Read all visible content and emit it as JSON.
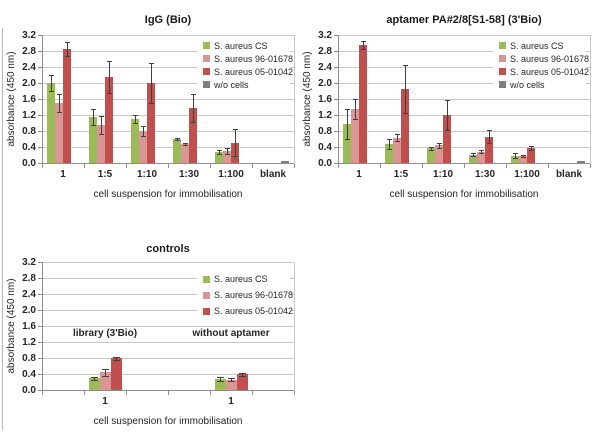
{
  "figure": {
    "background": "#ffffff",
    "series_colors": {
      "s_aureus_cs": "#9bbb59",
      "s_aureus_96_01678": "#d99694",
      "s_aureus_05_01042": "#c0504d",
      "wo_cells": "#7f7f7f"
    },
    "gridline_color": "#c9c9c9",
    "axis_color": "#8f8f8f",
    "error_bar_color": "#404040"
  },
  "chart_data": [
    {
      "type": "bar",
      "name": "igg-bio",
      "title": "IgG (Bio)",
      "xlabel": "cell suspension for immobilisation",
      "ylabel": "absorbance (450 nm)",
      "ylim": [
        0,
        3.2
      ],
      "ytick_step": 0.4,
      "ytick_labels": [
        "0.0",
        "0.4",
        "0.8",
        "1.2",
        "1.6",
        "2.0",
        "2.4",
        "2.8",
        "3.2"
      ],
      "grid": true,
      "legend_position": "top-right-inside",
      "categories": [
        "1",
        "1:5",
        "1:10",
        "1:30",
        "1:100",
        "blank"
      ],
      "series": [
        {
          "name": "S. aureus CS",
          "color": "#9bbb59",
          "values": [
            2.01,
            1.15,
            1.1,
            0.6,
            0.28,
            null
          ],
          "errors": [
            0.2,
            0.2,
            0.09,
            0.03,
            0.05,
            0
          ]
        },
        {
          "name": "S. aureus 96-01678",
          "color": "#d99694",
          "values": [
            1.5,
            0.95,
            0.8,
            0.48,
            0.3,
            null
          ],
          "errors": [
            0.22,
            0.22,
            0.12,
            0.02,
            0.08,
            0
          ]
        },
        {
          "name": "S. aureus 05-01042",
          "color": "#c0504d",
          "values": [
            2.85,
            2.15,
            2.0,
            1.37,
            0.51,
            null
          ],
          "errors": [
            0.17,
            0.4,
            0.5,
            0.35,
            0.33,
            0
          ]
        },
        {
          "name": "w/o cells",
          "color": "#7f7f7f",
          "values": [
            null,
            null,
            null,
            null,
            null,
            0.05
          ],
          "errors": [
            0,
            0,
            0,
            0,
            0,
            0
          ]
        }
      ],
      "annotations": []
    },
    {
      "type": "bar",
      "name": "aptamer",
      "title": "aptamer PA#2/8[S1-58] (3'Bio)",
      "xlabel": "cell suspension for immobilisation",
      "ylabel": "absorbance (450 nm)",
      "ylim": [
        0,
        3.2
      ],
      "ytick_step": 0.4,
      "ytick_labels": [
        "0.0",
        "0.4",
        "0.8",
        "1.2",
        "1.6",
        "2.0",
        "2.4",
        "2.8",
        "3.2"
      ],
      "grid": true,
      "legend_position": "top-right-inside",
      "categories": [
        "1",
        "1:5",
        "1:10",
        "1:30",
        "1:100",
        "blank"
      ],
      "series": [
        {
          "name": "S. aureus CS",
          "color": "#9bbb59",
          "values": [
            0.98,
            0.47,
            0.37,
            0.21,
            0.18,
            null
          ],
          "errors": [
            0.38,
            0.12,
            0.04,
            0.03,
            0.06,
            0
          ]
        },
        {
          "name": "S. aureus 96-01678",
          "color": "#d99694",
          "values": [
            1.35,
            0.63,
            0.44,
            0.28,
            0.17,
            null
          ],
          "errors": [
            0.26,
            0.09,
            0.06,
            0.04,
            0.03,
            0
          ]
        },
        {
          "name": "S. aureus 05-01042",
          "color": "#c0504d",
          "values": [
            2.95,
            1.85,
            1.2,
            0.66,
            0.37,
            null
          ],
          "errors": [
            0.1,
            0.6,
            0.38,
            0.17,
            0.05,
            0
          ]
        },
        {
          "name": "w/o cells",
          "color": "#7f7f7f",
          "values": [
            null,
            null,
            null,
            null,
            null,
            0.05
          ],
          "errors": [
            0,
            0,
            0,
            0,
            0,
            0
          ]
        }
      ],
      "annotations": []
    },
    {
      "type": "bar",
      "name": "controls",
      "title": "controls",
      "xlabel": "cell suspension for immobilisation",
      "ylabel": "absorbance (450 nm)",
      "ylim": [
        0,
        3.2
      ],
      "ytick_step": 0.4,
      "ytick_labels": [
        "0.0",
        "0.4",
        "0.8",
        "1.2",
        "1.6",
        "2.0",
        "2.4",
        "2.8",
        "3.2"
      ],
      "grid": true,
      "legend_position": "top-right-inside",
      "categories": [
        "",
        "1",
        "",
        "",
        "1",
        ""
      ],
      "series": [
        {
          "name": "S. aureus CS",
          "color": "#9bbb59",
          "values": [
            null,
            0.29,
            null,
            null,
            0.28,
            null
          ],
          "errors": [
            0,
            0.03,
            0,
            0,
            0.05,
            0
          ]
        },
        {
          "name": "S. aureus 96-01678",
          "color": "#d99694",
          "values": [
            null,
            0.44,
            null,
            null,
            0.26,
            null
          ],
          "errors": [
            0,
            0.09,
            0,
            0,
            0.04,
            0
          ]
        },
        {
          "name": "S. aureus 05-01042",
          "color": "#c0504d",
          "values": [
            null,
            0.79,
            null,
            null,
            0.39,
            null
          ],
          "errors": [
            0,
            0.03,
            0,
            0,
            0.03,
            0
          ]
        }
      ],
      "annotations": [
        {
          "text": "library (3'Bio)",
          "x_category": 1,
          "y": 1.38
        },
        {
          "text": "without aptamer",
          "x_category": 4,
          "y": 1.38
        }
      ]
    }
  ]
}
